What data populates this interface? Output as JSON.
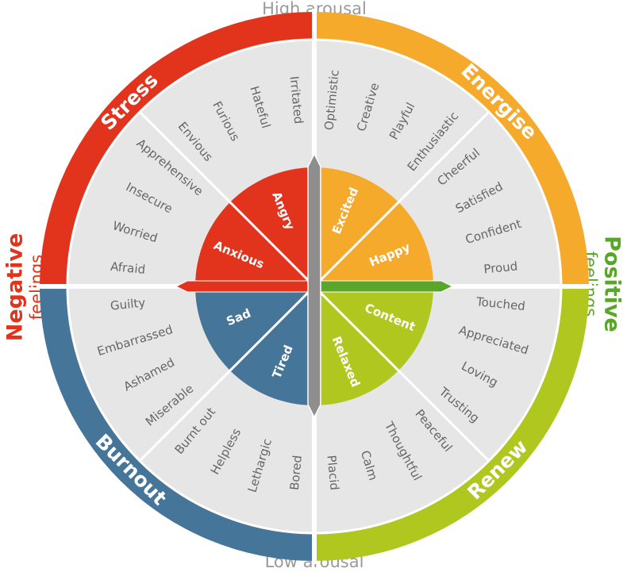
{
  "top_label": "High arousal",
  "bottom_label": "Low arousal",
  "left_label": {
    "title": "Negative",
    "subtitle": "feelings",
    "color": "#e2331d"
  },
  "right_label": {
    "title": "Positive",
    "subtitle": "feelings",
    "color": "#5aa62a"
  },
  "quadrants": [
    {
      "name": "Stress",
      "color": "#e2331d",
      "core": [
        "Anxious",
        "Angry"
      ],
      "groups": [
        [
          "Afraid",
          "Worried",
          "Insecure",
          "Apprehensive"
        ],
        [
          "Envious",
          "Furious",
          "Hateful",
          "Irritated"
        ]
      ]
    },
    {
      "name": "Energise",
      "color": "#f5aa2b",
      "core": [
        "Excited",
        "Happy"
      ],
      "groups": [
        [
          "Optimistic",
          "Creative",
          "Playful",
          "Enthusiastic"
        ],
        [
          "Cheerful",
          "Satisfied",
          "Confident",
          "Proud"
        ]
      ]
    },
    {
      "name": "Renew",
      "color": "#b0c720",
      "core": [
        "Content",
        "Relaxed"
      ],
      "groups": [
        [
          "Touched",
          "Appreciated",
          "Loving",
          "Trusting"
        ],
        [
          "Peaceful",
          "Thoughtful",
          "Calm",
          "Placid"
        ]
      ]
    },
    {
      "name": "Burnout",
      "color": "#46759a",
      "core": [
        "Tired",
        "Sad"
      ],
      "groups": [
        [
          "Bored",
          "Lethargic",
          "Helpless",
          "Burnt out"
        ],
        [
          "Miserable",
          "Ashamed",
          "Embarrassed",
          "Guilty"
        ]
      ]
    }
  ]
}
